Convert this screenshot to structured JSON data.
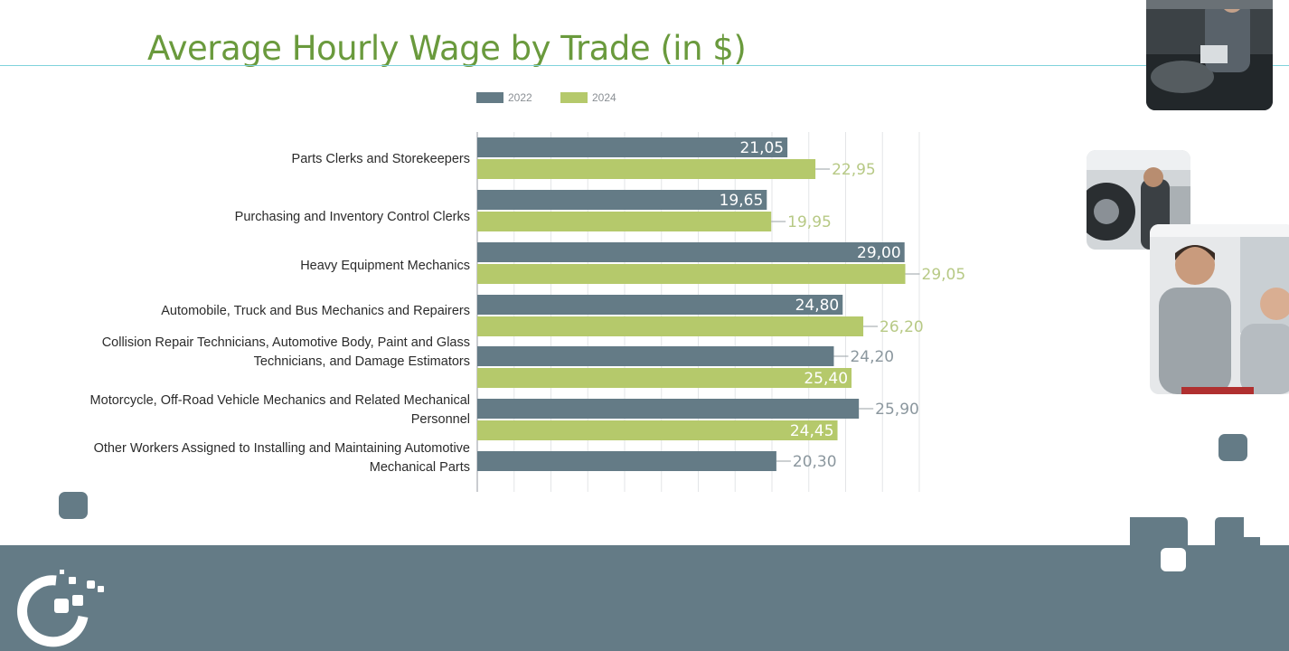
{
  "slide": {
    "title": "Average Hourly Wage by Trade (in $)"
  },
  "colors": {
    "title": "#6a9a3d",
    "bar_2022": "#647b86",
    "bar_2024": "#b5c96b",
    "footer": "#647b86",
    "accent_line": "#7fd3dc"
  },
  "photos": [
    {
      "name": "photo-mechanic-laptop-icon"
    },
    {
      "name": "photo-mechanic-tire-icon"
    },
    {
      "name": "photo-business-team-icon"
    }
  ],
  "logo": {
    "name": "company-logo-icon"
  },
  "chart_data": {
    "type": "bar",
    "orientation": "horizontal",
    "title": "",
    "xlabel": "",
    "ylabel": "",
    "legend": {
      "placement": "top",
      "entries": [
        "2022",
        "2024"
      ]
    },
    "grid": true,
    "xlim": [
      0,
      32
    ],
    "categories": [
      [
        "Parts Clerks and Storekeepers"
      ],
      [
        "Purchasing and Inventory Control Clerks"
      ],
      [
        "Heavy Equipment Mechanics"
      ],
      [
        "Automobile, Truck and Bus Mechanics and Repairers"
      ],
      [
        "Collision Repair Technicians, Automotive Body, Paint and Glass",
        "Technicians, and Damage Estimators"
      ],
      [
        "Motorcycle, Off-Road Vehicle Mechanics and Related Mechanical",
        "Personnel"
      ],
      [
        "Other Workers Assigned to Installing and Maintaining Automotive",
        "Mechanical Parts"
      ]
    ],
    "series": [
      {
        "name": "2022",
        "values": [
          21.05,
          19.65,
          29.0,
          24.8,
          24.2,
          25.9,
          20.3
        ],
        "labels": [
          "21,05",
          "19,65",
          "29,00",
          "24,80",
          "24,20",
          "25,90",
          "20,30"
        ],
        "label_inside": [
          true,
          true,
          true,
          true,
          false,
          false,
          false
        ]
      },
      {
        "name": "2024",
        "values": [
          22.95,
          19.95,
          29.05,
          26.2,
          25.4,
          24.45,
          null
        ],
        "labels": [
          "22,95",
          "19,95",
          "29,05",
          "26,20",
          "25,40",
          "24,45",
          ""
        ],
        "label_inside": [
          false,
          false,
          false,
          false,
          true,
          true,
          false
        ]
      }
    ]
  }
}
